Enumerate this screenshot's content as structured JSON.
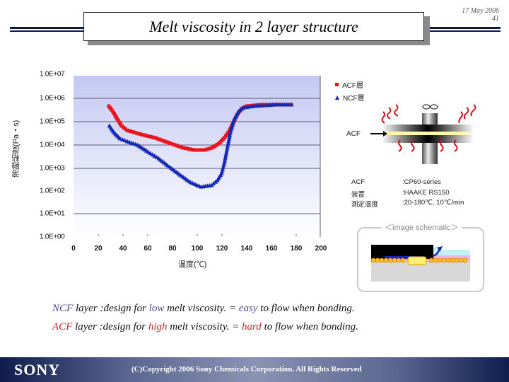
{
  "header": {
    "title": "Melt viscosity in 2 layer structure",
    "date": "17 May 2006",
    "page_number": "41",
    "line_color": "#0d1a4a"
  },
  "chart_data": {
    "type": "scatter",
    "title": "",
    "xlabel": "温度(℃)",
    "ylabel": "溶融粘度(Pa・s)",
    "xlim": [
      0,
      200
    ],
    "ylim": [
      1,
      10000000
    ],
    "y_scale": "log",
    "x_ticks": [
      "0",
      "20",
      "40",
      "60",
      "80",
      "100",
      "120",
      "140",
      "160",
      "180",
      "200"
    ],
    "y_ticks": [
      "1.0E+00",
      "1.0E+01",
      "1.0E+02",
      "1.0E+03",
      "1.0E+04",
      "1.0E+05",
      "1.0E+06",
      "1.0E+07"
    ],
    "grid": "horizontal",
    "legend_position": "right-top",
    "series": [
      {
        "name": "ACF層",
        "marker": "square",
        "color": "#e8141e",
        "x": [
          28.6,
          32,
          35.4,
          38.9,
          43.4,
          54.9,
          66.3,
          77.7,
          89.1,
          97.7,
          106.3,
          112,
          117.7,
          122.3,
          126.3,
          129.1,
          132.6,
          136,
          140.6,
          152,
          163.4,
          176.6
        ],
        "log10_y": [
          5.64,
          5.4,
          5.09,
          4.79,
          4.6,
          4.42,
          4.27,
          4.05,
          3.84,
          3.75,
          3.75,
          3.84,
          4.02,
          4.27,
          4.57,
          4.88,
          5.27,
          5.52,
          5.64,
          5.7,
          5.7,
          5.7
        ]
      },
      {
        "name": "NCF層",
        "marker": "triangle",
        "color": "#1428b4",
        "x": [
          29.1,
          33.1,
          37.7,
          43.4,
          52,
          60.6,
          69.1,
          77.7,
          86.3,
          94.9,
          103.4,
          112,
          116.6,
          120,
          122.3,
          124,
          125.7,
          127.4,
          130.3,
          133.7,
          137.7,
          146.3,
          163.4,
          176.6
        ],
        "log10_y": [
          4.79,
          4.48,
          4.24,
          4.12,
          3.96,
          3.66,
          3.38,
          3.02,
          2.68,
          2.35,
          2.16,
          2.23,
          2.44,
          2.74,
          3.2,
          3.66,
          4.12,
          4.57,
          5.09,
          5.4,
          5.58,
          5.64,
          5.7,
          5.7
        ]
      }
    ]
  },
  "schematic": {
    "acf_pointer_label": "ACF",
    "image_schematic_label": "＜image schematic＞"
  },
  "info": [
    {
      "key": "ACF",
      "value": ":CP60-series"
    },
    {
      "key": "装置",
      "value": ":HAAKE RS150"
    },
    {
      "key": "測定温度",
      "value": ":20-180℃, 10℃/min"
    }
  ],
  "captions": {
    "line1": {
      "layer": "NCF",
      "pre": " layer :design for ",
      "level": "low",
      "mid": " melt viscosity. = ",
      "ease": "easy",
      "post": " to flow when bonding."
    },
    "line2": {
      "layer": "ACF",
      "pre": " layer :design for ",
      "level": "high",
      "mid": " melt viscosity. = ",
      "ease": "hard",
      "post": " to flow when bonding."
    }
  },
  "footer": {
    "brand": "SONY",
    "copyright": "(C)Copyright 2006 Sony Chemicals Corporation. All Rights Reserved"
  }
}
